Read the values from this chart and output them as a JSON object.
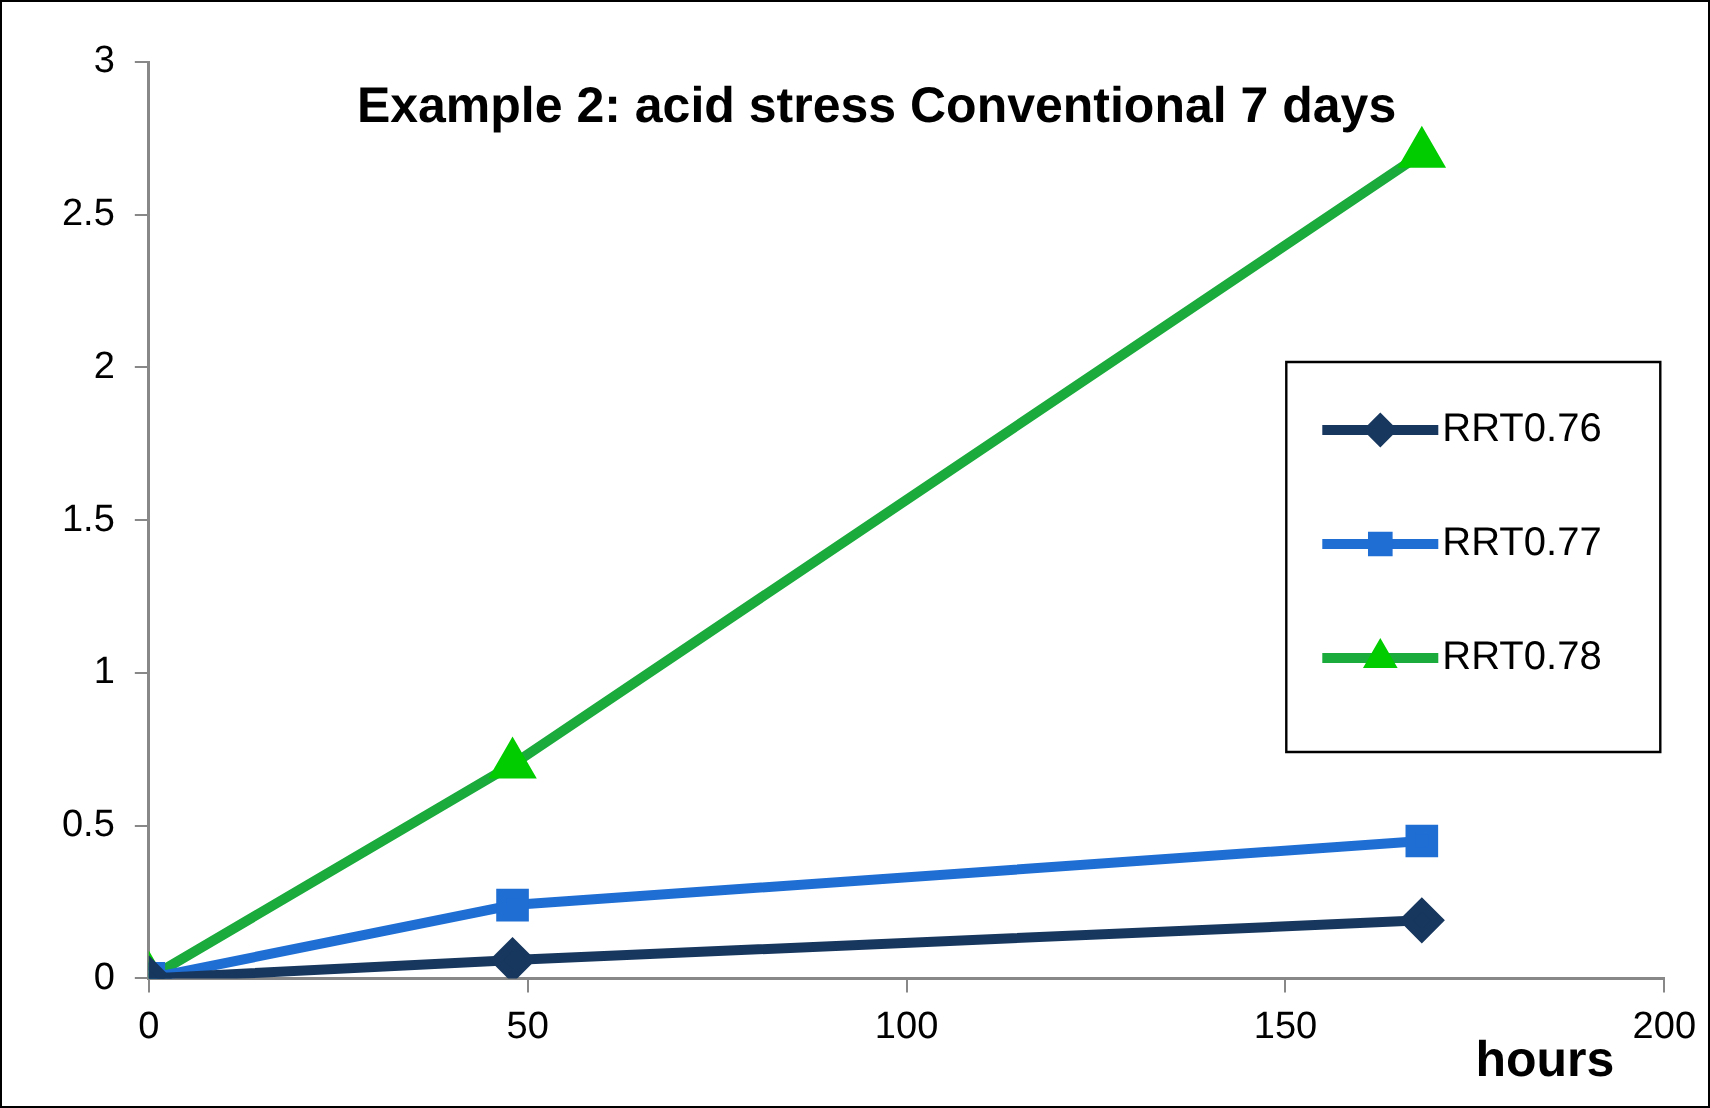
{
  "chart_data": {
    "type": "line",
    "title": "Example 2: acid stress Conventional 7 days",
    "xlabel": "hours",
    "x": [
      0,
      48,
      168
    ],
    "series": [
      {
        "name": "RRT0.76",
        "color": "#17375e",
        "marker": "diamond",
        "values": [
          0,
          0.06,
          0.19
        ]
      },
      {
        "name": "RRT0.77",
        "color": "#1f6ed4",
        "marker": "square",
        "values": [
          0,
          0.24,
          0.45
        ]
      },
      {
        "name": "RRT0.78",
        "color": "#1aab3c",
        "marker": "triangle",
        "values": [
          0,
          0.7,
          2.7
        ]
      }
    ],
    "xlim": [
      0,
      200
    ],
    "xticks": [
      0,
      50,
      100,
      150,
      200
    ],
    "ylim": [
      0,
      3
    ],
    "yticks": [
      0,
      0.5,
      1,
      1.5,
      2,
      2.5,
      3
    ],
    "grid": false,
    "legend": "right"
  }
}
